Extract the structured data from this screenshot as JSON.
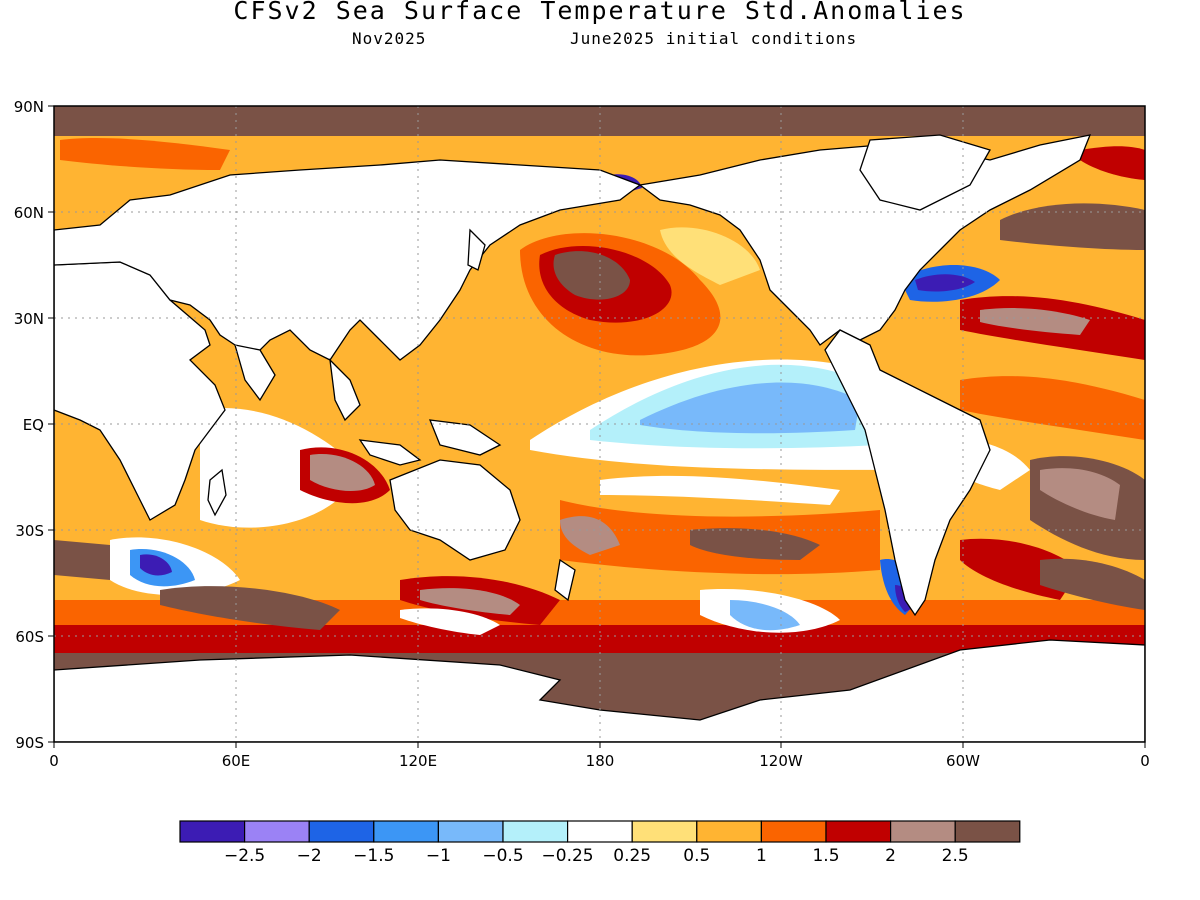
{
  "title": "CFSv2 Sea Surface Temperature Std.Anomalies",
  "subtitle_left": "Nov2025",
  "subtitle_right": "June2025 initial conditions",
  "lat_labels": [
    "90N",
    "60N",
    "30N",
    "EQ",
    "30S",
    "60S",
    "90S"
  ],
  "lon_labels": [
    "0",
    "60E",
    "120E",
    "180",
    "120W",
    "60W",
    "0"
  ],
  "colorbar": {
    "colors": [
      "#3c1cb4",
      "#9b82f5",
      "#1e64e6",
      "#3c96f5",
      "#78b9fa",
      "#b4f0fa",
      "#ffffff",
      "#ffe078",
      "#ffb432",
      "#fa6400",
      "#c00000",
      "#b48c82",
      "#7a5246"
    ],
    "labels": [
      "-2.5",
      "-2",
      "-1.5",
      "-1",
      "-0.5",
      "-0.25",
      "0.25",
      "0.5",
      "1",
      "1.5",
      "2",
      "2.5"
    ]
  },
  "colors": {
    "land": "#ffffff",
    "coast": "#000000",
    "ice": "#7a5246"
  }
}
